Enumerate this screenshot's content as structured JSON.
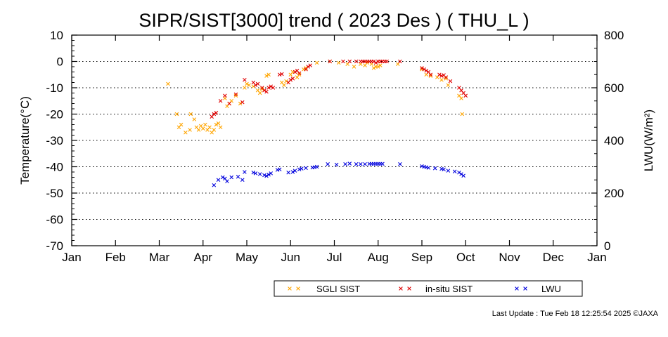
{
  "chart_data": {
    "type": "scatter",
    "title": "SIPR/SIST[3000] trend ( 2023 Des ) ( THU_L )",
    "ylabel": "Temperature(°C)",
    "y2label": "LWU(W/m²)",
    "ylim": [
      -70,
      10
    ],
    "y2lim": [
      0,
      800
    ],
    "yticks": [
      "10",
      "0",
      "-10",
      "-20",
      "-30",
      "-40",
      "-50",
      "-60",
      "-70"
    ],
    "y2ticks": [
      "800",
      "600",
      "400",
      "200",
      "0"
    ],
    "xlim": [
      0,
      12
    ],
    "xticks": [
      "Jan",
      "Feb",
      "Mar",
      "Apr",
      "May",
      "Jun",
      "Jul",
      "Aug",
      "Sep",
      "Oct",
      "Nov",
      "Dec",
      "Jan"
    ],
    "grid": "horizontal dotted",
    "legend_placement": "bottom",
    "series": [
      {
        "name": "SGLI SIST",
        "color": "#ffa500",
        "axis": "left",
        "points": [
          [
            2.2,
            -8.5
          ],
          [
            2.4,
            -20
          ],
          [
            2.45,
            -25
          ],
          [
            2.5,
            -24
          ],
          [
            2.6,
            -27
          ],
          [
            2.7,
            -26
          ],
          [
            2.72,
            -20
          ],
          [
            2.8,
            -22
          ],
          [
            2.85,
            -25
          ],
          [
            2.9,
            -26
          ],
          [
            2.95,
            -24.5
          ],
          [
            3.0,
            -25.5
          ],
          [
            3.05,
            -24
          ],
          [
            3.1,
            -26
          ],
          [
            3.15,
            -25
          ],
          [
            3.2,
            -27
          ],
          [
            3.25,
            -26
          ],
          [
            3.3,
            -24
          ],
          [
            3.35,
            -23.5
          ],
          [
            3.4,
            -25
          ],
          [
            3.5,
            -14
          ],
          [
            3.55,
            -17
          ],
          [
            3.6,
            -16
          ],
          [
            3.65,
            -15
          ],
          [
            3.75,
            -13
          ],
          [
            3.85,
            -16
          ],
          [
            3.95,
            -10
          ],
          [
            4.0,
            -8.5
          ],
          [
            4.05,
            -9
          ],
          [
            4.15,
            -9.5
          ],
          [
            4.25,
            -11
          ],
          [
            4.3,
            -12
          ],
          [
            4.35,
            -10.5
          ],
          [
            4.45,
            -5.5
          ],
          [
            4.5,
            -5
          ],
          [
            4.8,
            -8
          ],
          [
            4.85,
            -9
          ],
          [
            4.9,
            -7.5
          ],
          [
            5.0,
            -5
          ],
          [
            5.05,
            -4
          ],
          [
            5.15,
            -6
          ],
          [
            5.2,
            -5
          ],
          [
            5.3,
            -3
          ],
          [
            5.35,
            -2.5
          ],
          [
            5.6,
            -0.5
          ],
          [
            5.9,
            0
          ],
          [
            6.1,
            -0.5
          ],
          [
            6.3,
            -1
          ],
          [
            6.45,
            -2
          ],
          [
            6.6,
            -1
          ],
          [
            6.7,
            -1.5
          ],
          [
            6.75,
            -0.5
          ],
          [
            6.85,
            -1
          ],
          [
            6.9,
            -2.5
          ],
          [
            6.95,
            -2
          ],
          [
            7.0,
            -2
          ],
          [
            7.05,
            -1.5
          ],
          [
            7.45,
            -1
          ],
          [
            8.0,
            -3
          ],
          [
            8.1,
            -5
          ],
          [
            8.2,
            -5.5
          ],
          [
            8.35,
            -6
          ],
          [
            8.45,
            -7
          ],
          [
            8.55,
            -6.5
          ],
          [
            8.6,
            -9
          ],
          [
            8.85,
            -13
          ],
          [
            8.9,
            -14
          ],
          [
            8.92,
            -20
          ]
        ]
      },
      {
        "name": "in-situ SIST",
        "color": "#e00000",
        "axis": "left",
        "points": [
          [
            3.2,
            -21
          ],
          [
            3.25,
            -20
          ],
          [
            3.3,
            -19.5
          ],
          [
            3.4,
            -15
          ],
          [
            3.5,
            -13
          ],
          [
            3.6,
            -16
          ],
          [
            3.75,
            -12.5
          ],
          [
            3.9,
            -15.5
          ],
          [
            3.95,
            -7
          ],
          [
            4.15,
            -8
          ],
          [
            4.2,
            -9
          ],
          [
            4.25,
            -8.5
          ],
          [
            4.35,
            -10
          ],
          [
            4.4,
            -11
          ],
          [
            4.45,
            -11.5
          ],
          [
            4.5,
            -10
          ],
          [
            4.55,
            -9.5
          ],
          [
            4.6,
            -10
          ],
          [
            4.75,
            -5
          ],
          [
            4.8,
            -4.8
          ],
          [
            4.95,
            -8
          ],
          [
            5.0,
            -7
          ],
          [
            5.05,
            -6.5
          ],
          [
            5.1,
            -4
          ],
          [
            5.15,
            -3.5
          ],
          [
            5.2,
            -4.5
          ],
          [
            5.35,
            -3
          ],
          [
            5.4,
            -2
          ],
          [
            5.45,
            -1.5
          ],
          [
            5.9,
            0
          ],
          [
            6.2,
            0
          ],
          [
            6.35,
            0
          ],
          [
            6.5,
            0
          ],
          [
            6.6,
            0
          ],
          [
            6.65,
            0
          ],
          [
            6.7,
            0
          ],
          [
            6.75,
            0
          ],
          [
            6.8,
            0
          ],
          [
            6.85,
            0
          ],
          [
            6.9,
            0
          ],
          [
            6.95,
            -0.5
          ],
          [
            7.0,
            0
          ],
          [
            7.05,
            0
          ],
          [
            7.1,
            0
          ],
          [
            7.15,
            0
          ],
          [
            7.2,
            0
          ],
          [
            7.5,
            0
          ],
          [
            8.0,
            -2.5
          ],
          [
            8.05,
            -3
          ],
          [
            8.1,
            -3.5
          ],
          [
            8.15,
            -4
          ],
          [
            8.2,
            -5
          ],
          [
            8.4,
            -5
          ],
          [
            8.45,
            -5.5
          ],
          [
            8.5,
            -5.2
          ],
          [
            8.55,
            -6
          ],
          [
            8.65,
            -7.5
          ],
          [
            8.85,
            -10
          ],
          [
            8.9,
            -11
          ],
          [
            8.95,
            -12
          ],
          [
            9.0,
            -13
          ]
        ]
      },
      {
        "name": "LWU",
        "color": "#0000dd",
        "axis": "right",
        "points": [
          [
            3.25,
            230
          ],
          [
            3.35,
            250
          ],
          [
            3.45,
            260
          ],
          [
            3.5,
            255
          ],
          [
            3.55,
            245
          ],
          [
            3.65,
            260
          ],
          [
            3.8,
            262
          ],
          [
            3.9,
            250
          ],
          [
            3.95,
            280
          ],
          [
            4.15,
            278
          ],
          [
            4.2,
            275
          ],
          [
            4.3,
            272
          ],
          [
            4.4,
            268
          ],
          [
            4.45,
            265
          ],
          [
            4.5,
            270
          ],
          [
            4.55,
            275
          ],
          [
            4.7,
            288
          ],
          [
            4.75,
            290
          ],
          [
            4.95,
            278
          ],
          [
            5.05,
            280
          ],
          [
            5.1,
            285
          ],
          [
            5.2,
            290
          ],
          [
            5.25,
            293
          ],
          [
            5.35,
            295
          ],
          [
            5.5,
            297
          ],
          [
            5.55,
            298
          ],
          [
            5.6,
            300
          ],
          [
            5.85,
            310
          ],
          [
            6.05,
            308
          ],
          [
            6.25,
            310
          ],
          [
            6.35,
            312
          ],
          [
            6.5,
            310
          ],
          [
            6.6,
            310
          ],
          [
            6.7,
            310
          ],
          [
            6.8,
            311
          ],
          [
            6.85,
            311
          ],
          [
            6.9,
            311
          ],
          [
            6.95,
            311
          ],
          [
            7.0,
            311
          ],
          [
            7.05,
            311
          ],
          [
            7.1,
            311
          ],
          [
            7.5,
            310
          ],
          [
            8.0,
            302
          ],
          [
            8.05,
            300
          ],
          [
            8.1,
            298
          ],
          [
            8.15,
            296
          ],
          [
            8.3,
            294
          ],
          [
            8.45,
            292
          ],
          [
            8.5,
            290
          ],
          [
            8.6,
            285
          ],
          [
            8.75,
            282
          ],
          [
            8.85,
            278
          ],
          [
            8.9,
            272
          ],
          [
            8.95,
            266
          ]
        ]
      }
    ]
  },
  "legend": {
    "items": [
      {
        "label": "SGLI SIST",
        "color": "#ffa500"
      },
      {
        "label": "in-situ SIST",
        "color": "#e00000"
      },
      {
        "label": "LWU",
        "color": "#0000dd"
      }
    ]
  },
  "footer": {
    "last_update": "Last Update : Tue Feb 18 12:25:54 2025  ©JAXA"
  }
}
